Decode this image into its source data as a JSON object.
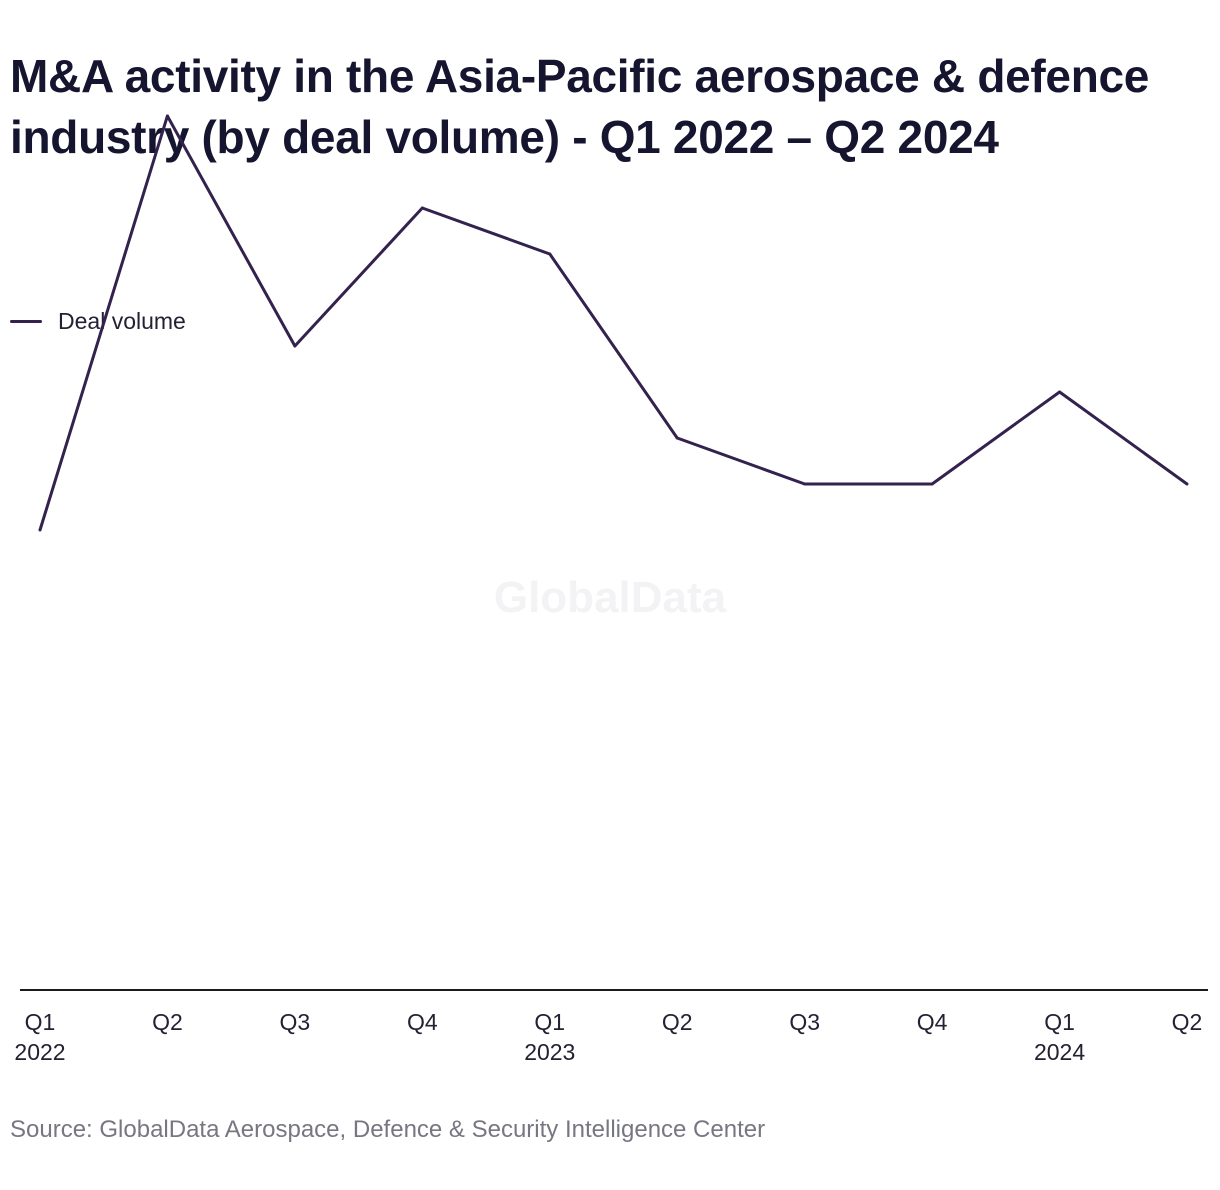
{
  "watermark": "GlobalData",
  "source": "Source: GlobalData Aerospace, Defence & Security Intelligence Center",
  "colors": {
    "line": "#34224e",
    "axis": "#1a1a1a",
    "text": "#222233",
    "source": "#777782"
  },
  "chart_data": {
    "type": "line",
    "title": "M&A activity in the Asia-Pacific aerospace & defence industry (by deal volume) - Q1 2022 – Q2 2024",
    "legend_position": "top-left",
    "grid": false,
    "y_axis_labels_shown": false,
    "categories": [
      [
        "Q1",
        "2022"
      ],
      [
        "Q2",
        ""
      ],
      [
        "Q3",
        ""
      ],
      [
        "Q4",
        ""
      ],
      [
        "Q1",
        "2023"
      ],
      [
        "Q2",
        ""
      ],
      [
        "Q3",
        ""
      ],
      [
        "Q4",
        ""
      ],
      [
        "Q1",
        "2024"
      ],
      [
        "Q2",
        ""
      ]
    ],
    "ylim": [
      0,
      44
    ],
    "series": [
      {
        "name": "Deal volume",
        "values": [
          20,
          38,
          28,
          34,
          32,
          24,
          22,
          22,
          26,
          22
        ]
      }
    ]
  }
}
